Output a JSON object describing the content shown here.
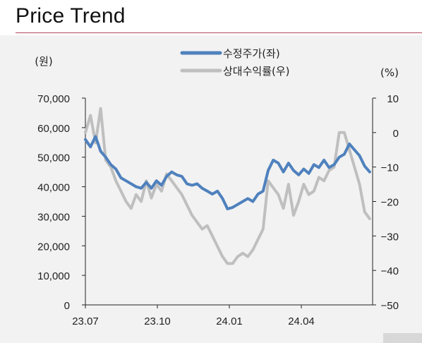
{
  "title": "Price Trend",
  "chart_data": {
    "type": "line",
    "legend": {
      "position": "top-center",
      "entries": [
        "수정주가(좌)",
        "상대수익률(우)"
      ]
    },
    "left_axis": {
      "unit": "(원)",
      "ticks": [
        "70,000",
        "60,000",
        "50,000",
        "40,000",
        "30,000",
        "20,000",
        "10,000",
        "0"
      ],
      "range": [
        0,
        70000
      ]
    },
    "right_axis": {
      "unit": "(%)",
      "ticks": [
        "10",
        "0",
        "−10",
        "−20",
        "−30",
        "−40",
        "−50"
      ],
      "range": [
        -50,
        10
      ]
    },
    "x_ticks": [
      "23.07",
      "23.10",
      "24.01",
      "24.04"
    ],
    "x_range": [
      "2023-07-01",
      "2024-07-31"
    ],
    "grid": false,
    "series": [
      {
        "name": "수정주가(좌)",
        "axis": "left",
        "color": "#4f81bd",
        "x": [
          "2023-07-01",
          "2023-07-08",
          "2023-07-15",
          "2023-07-22",
          "2023-07-29",
          "2023-08-05",
          "2023-08-12",
          "2023-08-19",
          "2023-08-26",
          "2023-09-02",
          "2023-09-09",
          "2023-09-16",
          "2023-09-23",
          "2023-09-30",
          "2023-10-07",
          "2023-10-14",
          "2023-10-21",
          "2023-10-28",
          "2023-11-04",
          "2023-11-11",
          "2023-11-18",
          "2023-11-25",
          "2023-12-02",
          "2023-12-09",
          "2023-12-16",
          "2023-12-23",
          "2023-12-30",
          "2024-01-06",
          "2024-01-13",
          "2024-01-20",
          "2024-01-27",
          "2024-02-03",
          "2024-02-10",
          "2024-02-17",
          "2024-02-24",
          "2024-03-02",
          "2024-03-09",
          "2024-03-16",
          "2024-03-23",
          "2024-03-30",
          "2024-04-06",
          "2024-04-13",
          "2024-04-20",
          "2024-04-27",
          "2024-05-04",
          "2024-05-11",
          "2024-05-18",
          "2024-05-25",
          "2024-06-01",
          "2024-06-08",
          "2024-06-15",
          "2024-06-22",
          "2024-06-29",
          "2024-07-06",
          "2024-07-13",
          "2024-07-20",
          "2024-07-27"
        ],
        "values": [
          56000,
          53500,
          57000,
          52000,
          50000,
          47500,
          46000,
          43000,
          42000,
          41000,
          40000,
          39500,
          41500,
          39500,
          42000,
          40500,
          43500,
          45000,
          44000,
          43500,
          41000,
          40500,
          41000,
          39500,
          38500,
          37500,
          38500,
          36000,
          32500,
          33000,
          34000,
          35000,
          36000,
          35000,
          37500,
          38500,
          45500,
          49000,
          48000,
          45000,
          48000,
          45500,
          44000,
          46000,
          44500,
          47500,
          46500,
          49000,
          46500,
          47500,
          50000,
          51000,
          54500,
          52500,
          50500,
          47000,
          45000
        ]
      },
      {
        "name": "상대수익률(우)",
        "axis": "right",
        "color": "#bfbfbf",
        "x": [
          "2023-07-01",
          "2023-07-08",
          "2023-07-15",
          "2023-07-22",
          "2023-07-29",
          "2023-08-05",
          "2023-08-12",
          "2023-08-19",
          "2023-08-26",
          "2023-09-02",
          "2023-09-09",
          "2023-09-16",
          "2023-09-23",
          "2023-09-30",
          "2023-10-07",
          "2023-10-14",
          "2023-10-21",
          "2023-10-28",
          "2023-11-04",
          "2023-11-11",
          "2023-11-18",
          "2023-11-25",
          "2023-12-02",
          "2023-12-09",
          "2023-12-16",
          "2023-12-23",
          "2023-12-30",
          "2024-01-06",
          "2024-01-13",
          "2024-01-20",
          "2024-01-27",
          "2024-02-03",
          "2024-02-10",
          "2024-02-17",
          "2024-02-24",
          "2024-03-02",
          "2024-03-09",
          "2024-03-16",
          "2024-03-23",
          "2024-03-30",
          "2024-04-06",
          "2024-04-13",
          "2024-04-20",
          "2024-04-27",
          "2024-05-04",
          "2024-05-11",
          "2024-05-18",
          "2024-05-25",
          "2024-06-01",
          "2024-06-08",
          "2024-06-15",
          "2024-06-22",
          "2024-06-29",
          "2024-07-06",
          "2024-07-13",
          "2024-07-20",
          "2024-07-27"
        ],
        "values": [
          0,
          5,
          -3,
          7,
          -8,
          -10,
          -14,
          -17,
          -20,
          -22,
          -18,
          -20,
          -14,
          -19,
          -15,
          -17,
          -12,
          -14,
          -16,
          -18,
          -21,
          -24,
          -26,
          -28,
          -27,
          -30,
          -33,
          -36,
          -38,
          -38,
          -36,
          -35,
          -36,
          -34,
          -31,
          -28,
          -14,
          -16,
          -18,
          -22,
          -15,
          -24,
          -20,
          -15,
          -18,
          -17,
          -13,
          -14,
          -11,
          -10,
          0,
          0,
          -5,
          -10,
          -15,
          -23,
          -25
        ]
      }
    ]
  }
}
